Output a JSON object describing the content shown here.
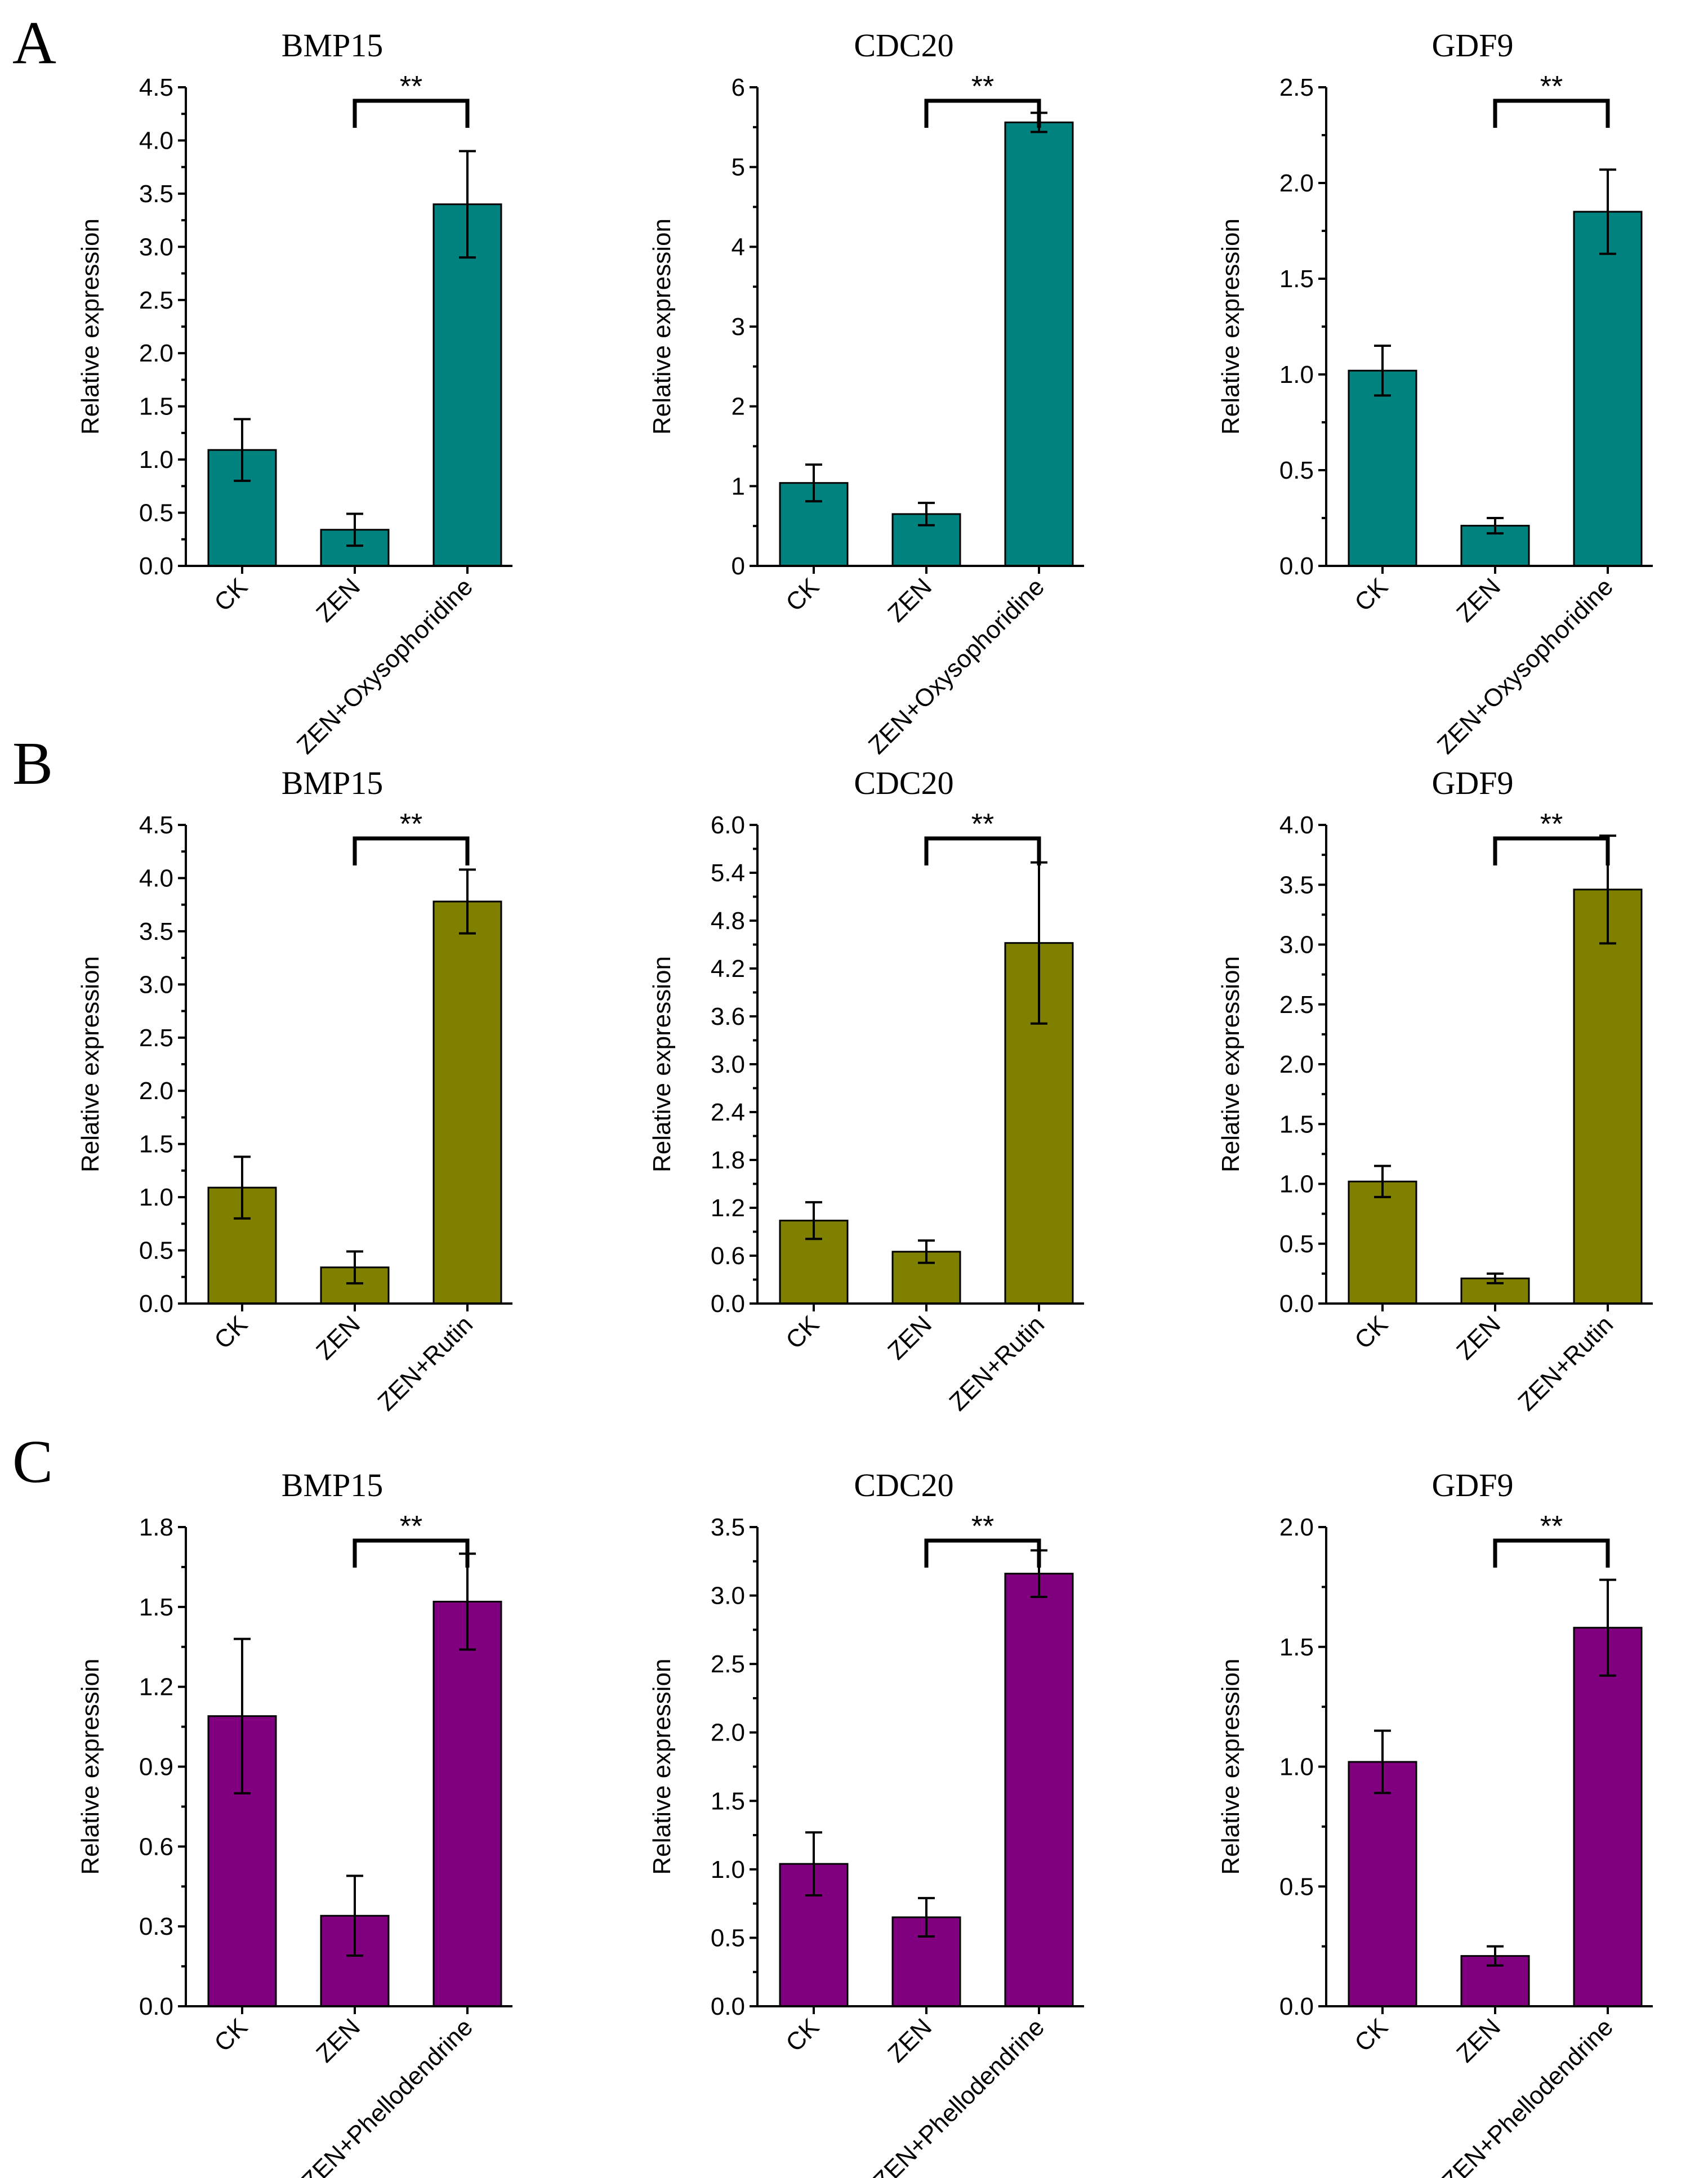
{
  "colors": {
    "A": "#00827F",
    "B": "#808000",
    "C": "#800080"
  },
  "panels": [
    {
      "id": "A",
      "letter": "A"
    },
    {
      "id": "B",
      "letter": "B"
    },
    {
      "id": "C",
      "letter": "C"
    }
  ],
  "chart_data": [
    {
      "type": "bar",
      "panel": "A",
      "title": "BMP15",
      "ylabel": "Relative expression",
      "xlabel": "",
      "categories": [
        "CK",
        "ZEN",
        "ZEN+Oxysophoridine"
      ],
      "values": [
        1.09,
        0.34,
        3.4
      ],
      "errors": [
        0.29,
        0.15,
        0.5
      ],
      "ylim": [
        0,
        4.5
      ],
      "yticks": [
        "0.0",
        "0.5",
        "1.0",
        "1.5",
        "2.0",
        "2.5",
        "3.0",
        "3.5",
        "4.0",
        "4.5"
      ],
      "significance": "**"
    },
    {
      "type": "bar",
      "panel": "A",
      "title": "CDC20",
      "ylabel": "Relative expression",
      "xlabel": "",
      "categories": [
        "CK",
        "ZEN",
        "ZEN+Oxysophoridine"
      ],
      "values": [
        1.04,
        0.65,
        5.56
      ],
      "errors": [
        0.23,
        0.14,
        0.12
      ],
      "ylim": [
        0,
        6
      ],
      "yticks": [
        "0",
        "1",
        "2",
        "3",
        "4",
        "5",
        "6"
      ],
      "significance": "**"
    },
    {
      "type": "bar",
      "panel": "A",
      "title": "GDF9",
      "ylabel": "Relative expression",
      "xlabel": "",
      "categories": [
        "CK",
        "ZEN",
        "ZEN+Oxysophoridine"
      ],
      "values": [
        1.02,
        0.21,
        1.85
      ],
      "errors": [
        0.13,
        0.04,
        0.22
      ],
      "ylim": [
        0,
        2.5
      ],
      "yticks": [
        "0.0",
        "0.5",
        "1.0",
        "1.5",
        "2.0",
        "2.5"
      ],
      "significance": "**"
    },
    {
      "type": "bar",
      "panel": "B",
      "title": "BMP15",
      "ylabel": "Relative expression",
      "xlabel": "",
      "categories": [
        "CK",
        "ZEN",
        "ZEN+Rutin"
      ],
      "values": [
        1.09,
        0.34,
        3.78
      ],
      "errors": [
        0.29,
        0.15,
        0.3
      ],
      "ylim": [
        0,
        4.5
      ],
      "yticks": [
        "0.0",
        "0.5",
        "1.0",
        "1.5",
        "2.0",
        "2.5",
        "3.0",
        "3.5",
        "4.0",
        "4.5"
      ],
      "significance": "**"
    },
    {
      "type": "bar",
      "panel": "B",
      "title": "CDC20",
      "ylabel": "Relative expression",
      "xlabel": "",
      "categories": [
        "CK",
        "ZEN",
        "ZEN+Rutin"
      ],
      "values": [
        1.04,
        0.65,
        4.52
      ],
      "errors": [
        0.23,
        0.14,
        1.01
      ],
      "ylim": [
        0,
        6.0
      ],
      "yticks": [
        "0.0",
        "0.6",
        "1.2",
        "1.8",
        "2.4",
        "3.0",
        "3.6",
        "4.2",
        "4.8",
        "5.4",
        "6.0"
      ],
      "significance": "**"
    },
    {
      "type": "bar",
      "panel": "B",
      "title": "GDF9",
      "ylabel": "Relative expression",
      "xlabel": "",
      "categories": [
        "CK",
        "ZEN",
        "ZEN+Rutin"
      ],
      "values": [
        1.02,
        0.21,
        3.46
      ],
      "errors": [
        0.13,
        0.04,
        0.45
      ],
      "ylim": [
        0,
        4.0
      ],
      "yticks": [
        "0.0",
        "0.5",
        "1.0",
        "1.5",
        "2.0",
        "2.5",
        "3.0",
        "3.5",
        "4.0"
      ],
      "significance": "**"
    },
    {
      "type": "bar",
      "panel": "C",
      "title": "BMP15",
      "ylabel": "Relative expression",
      "xlabel": "",
      "categories": [
        "CK",
        "ZEN",
        "ZEN+Phellodendrine"
      ],
      "values": [
        1.09,
        0.34,
        1.52
      ],
      "errors": [
        0.29,
        0.15,
        0.18
      ],
      "ylim": [
        0,
        1.8
      ],
      "yticks": [
        "0.0",
        "0.3",
        "0.6",
        "0.9",
        "1.2",
        "1.5",
        "1.8"
      ],
      "significance": "**"
    },
    {
      "type": "bar",
      "panel": "C",
      "title": "CDC20",
      "ylabel": "Relative expression",
      "xlabel": "",
      "categories": [
        "CK",
        "ZEN",
        "ZEN+Phellodendrine"
      ],
      "values": [
        1.04,
        0.65,
        3.16
      ],
      "errors": [
        0.23,
        0.14,
        0.17
      ],
      "ylim": [
        0,
        3.5
      ],
      "yticks": [
        "0.0",
        "0.5",
        "1.0",
        "1.5",
        "2.0",
        "2.5",
        "3.0",
        "3.5"
      ],
      "significance": "**"
    },
    {
      "type": "bar",
      "panel": "C",
      "title": "GDF9",
      "ylabel": "Relative expression",
      "xlabel": "",
      "categories": [
        "CK",
        "ZEN",
        "ZEN+Phellodendrine"
      ],
      "values": [
        1.02,
        0.21,
        1.58
      ],
      "errors": [
        0.13,
        0.04,
        0.2
      ],
      "ylim": [
        0,
        2.0
      ],
      "yticks": [
        "0.0",
        "0.5",
        "1.0",
        "1.5",
        "2.0"
      ],
      "significance": "**"
    }
  ]
}
